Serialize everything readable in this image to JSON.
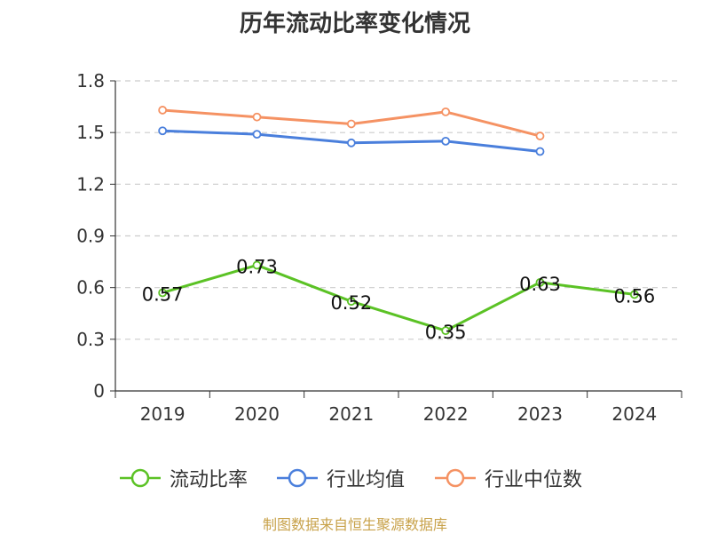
{
  "chart_data": {
    "type": "line",
    "title": "历年流动比率变化情况",
    "categories": [
      "2019",
      "2020",
      "2021",
      "2022",
      "2023",
      "2024"
    ],
    "ylim": [
      0,
      1.8
    ],
    "yticks": [
      "0",
      "0.3",
      "0.6",
      "0.9",
      "1.2",
      "1.5",
      "1.8"
    ],
    "grid": true,
    "legend_position": "bottom",
    "series": [
      {
        "name": "流动比率",
        "color": "#5bc225",
        "values": [
          0.57,
          0.73,
          0.52,
          0.35,
          0.63,
          0.56
        ],
        "labels": [
          "0.57",
          "0.73",
          "0.52",
          "0.35",
          "0.63",
          "0.56"
        ]
      },
      {
        "name": "行业均值",
        "color": "#4a7fdc",
        "values": [
          1.51,
          1.49,
          1.44,
          1.45,
          1.39,
          null
        ]
      },
      {
        "name": "行业中位数",
        "color": "#f59263",
        "values": [
          1.63,
          1.59,
          1.55,
          1.62,
          1.48,
          null
        ]
      }
    ]
  },
  "source_note": "制图数据来自恒生聚源数据库"
}
